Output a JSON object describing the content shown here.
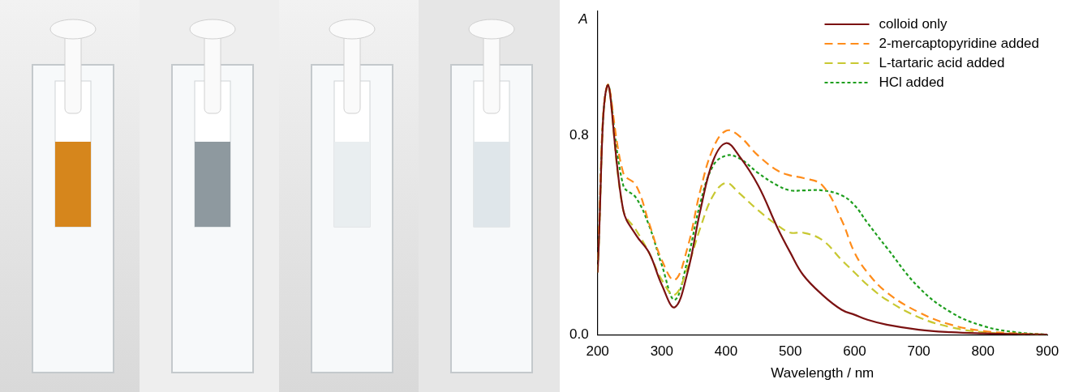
{
  "chart_data": {
    "type": "line",
    "x_label": "Wavelength / nm",
    "y_label": "A",
    "x": [
      200,
      215,
      240,
      260,
      280,
      300,
      320,
      340,
      360,
      380,
      400,
      420,
      450,
      480,
      500,
      520,
      550,
      580,
      600,
      620,
      650,
      700,
      750,
      800,
      850,
      900
    ],
    "series": [
      {
        "name": "colloid only",
        "color": "#7b1212",
        "line_style": "solid",
        "values": [
          0.25,
          1.0,
          0.5,
          0.4,
          0.33,
          0.2,
          0.11,
          0.25,
          0.5,
          0.7,
          0.77,
          0.72,
          0.6,
          0.43,
          0.33,
          0.24,
          0.16,
          0.1,
          0.08,
          0.06,
          0.04,
          0.02,
          0.01,
          0.005,
          0.002,
          0
        ]
      },
      {
        "name": "2-mercaptopyridine added",
        "color": "#ff8c1a",
        "line_style": "dashed",
        "values": [
          0.3,
          1.0,
          0.65,
          0.6,
          0.45,
          0.3,
          0.22,
          0.35,
          0.58,
          0.75,
          0.82,
          0.8,
          0.72,
          0.66,
          0.64,
          0.63,
          0.6,
          0.46,
          0.33,
          0.25,
          0.17,
          0.09,
          0.04,
          0.015,
          0.005,
          0
        ]
      },
      {
        "name": "L-tartaric acid added",
        "color": "#c8c832",
        "line_style": "dashed",
        "values": [
          0.25,
          1.0,
          0.5,
          0.42,
          0.33,
          0.22,
          0.16,
          0.27,
          0.43,
          0.56,
          0.61,
          0.57,
          0.5,
          0.44,
          0.41,
          0.41,
          0.38,
          0.3,
          0.25,
          0.2,
          0.14,
          0.07,
          0.03,
          0.01,
          0.003,
          0
        ]
      },
      {
        "name": "HCl added",
        "color": "#1e9e1e",
        "line_style": "dotted",
        "values": [
          0.27,
          1.0,
          0.6,
          0.55,
          0.44,
          0.28,
          0.14,
          0.3,
          0.53,
          0.68,
          0.72,
          0.71,
          0.65,
          0.6,
          0.58,
          0.58,
          0.58,
          0.56,
          0.52,
          0.45,
          0.35,
          0.19,
          0.09,
          0.035,
          0.01,
          0
        ]
      }
    ],
    "xlim": [
      200,
      900
    ],
    "ylim": [
      0,
      1.3
    ],
    "xticks": [
      200,
      300,
      400,
      500,
      600,
      700,
      800,
      900
    ],
    "yticks": [
      {
        "value": 0,
        "label": "0.0"
      },
      {
        "value": 0.8,
        "label": "0.8"
      }
    ],
    "grid": false,
    "legend": "upper right"
  }
}
